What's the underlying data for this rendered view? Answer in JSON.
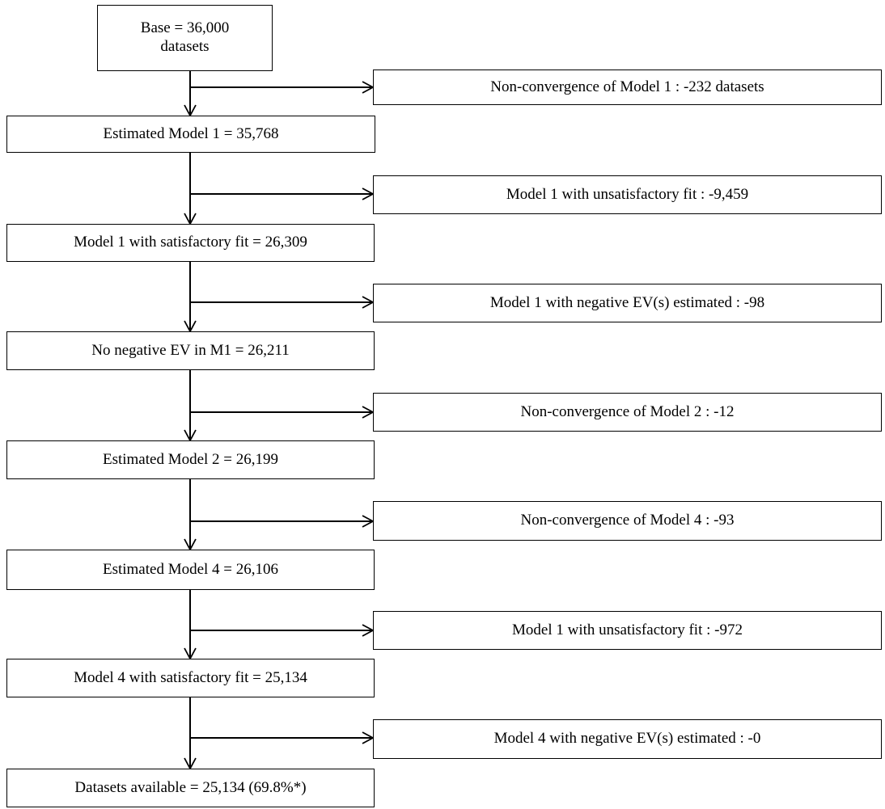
{
  "base": {
    "line1": "Base = 36,000",
    "line2": "datasets"
  },
  "steps": [
    {
      "main": "Estimated Model 1 = 35,768",
      "excluded": "Non-convergence of Model 1 : -232 datasets"
    },
    {
      "main": "Model 1 with  satisfactory fit = 26,309",
      "excluded": "Model 1 with  unsatisfactory fit : -9,459"
    },
    {
      "main": "No negative EV  in M1 = 26,211",
      "excluded": "Model 1 with  negative EV(s) estimated : -98"
    },
    {
      "main": "Estimated Model 2 = 26,199",
      "excluded": "Non-convergence of Model 2 : -12"
    },
    {
      "main": "Estimated Model 4 = 26,106",
      "excluded": "Non-convergence of Model 4 : -93"
    },
    {
      "main": "Model 4 with  satisfactory fit = 25,134",
      "excluded": "Model 1 with unsatisfactory fit : -972"
    },
    {
      "main": "Datasets available  = 25,134 (69.8%*)",
      "excluded": "Model 4 with negative EV(s) estimated : -0"
    }
  ]
}
